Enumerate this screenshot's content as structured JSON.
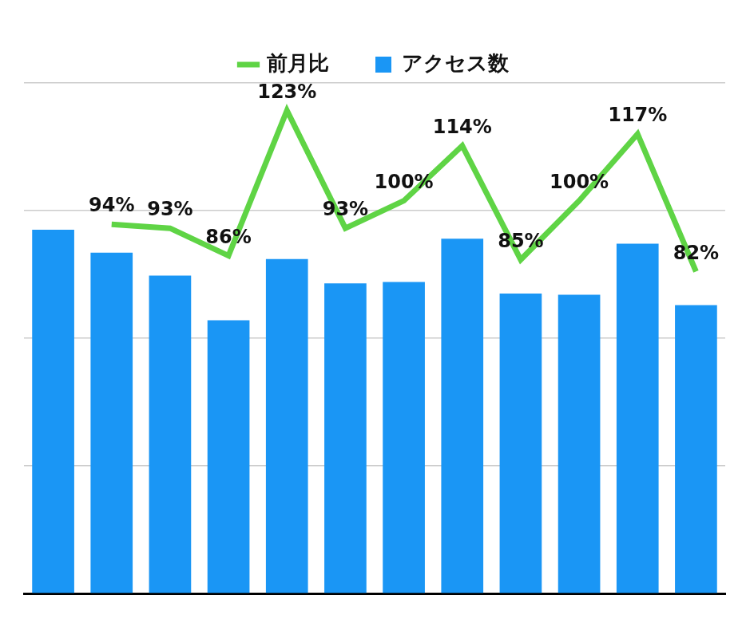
{
  "chart_data": {
    "type": "bar",
    "categories": [
      null,
      null,
      null,
      null,
      null,
      null,
      null,
      null,
      null,
      null,
      null,
      null
    ],
    "series": [
      {
        "name": "アクセス数",
        "type": "bar",
        "color": "#1a96f5",
        "values": [
          2.85,
          2.67,
          2.49,
          2.14,
          2.62,
          2.43,
          2.44,
          2.78,
          2.35,
          2.34,
          2.74,
          2.26
        ]
      },
      {
        "name": "前月比",
        "type": "line",
        "color": "#5fd445",
        "axis": "y2",
        "data_labels": true,
        "values": [
          null,
          94,
          93,
          86,
          123,
          93,
          100,
          114,
          85,
          100,
          117,
          82
        ],
        "value_labels": [
          null,
          "94%",
          "93%",
          "86%",
          "123%",
          "93%",
          "100%",
          "114%",
          "85%",
          "100%",
          "117%",
          "82%"
        ]
      }
    ],
    "ylim": [
      0,
      4
    ],
    "yticks": [
      0,
      1,
      2,
      3,
      4
    ],
    "y2lim": [
      0,
      130
    ],
    "y2ticks": [
      0,
      130
    ],
    "grid": true,
    "legend": "top",
    "tick_labels": false
  }
}
